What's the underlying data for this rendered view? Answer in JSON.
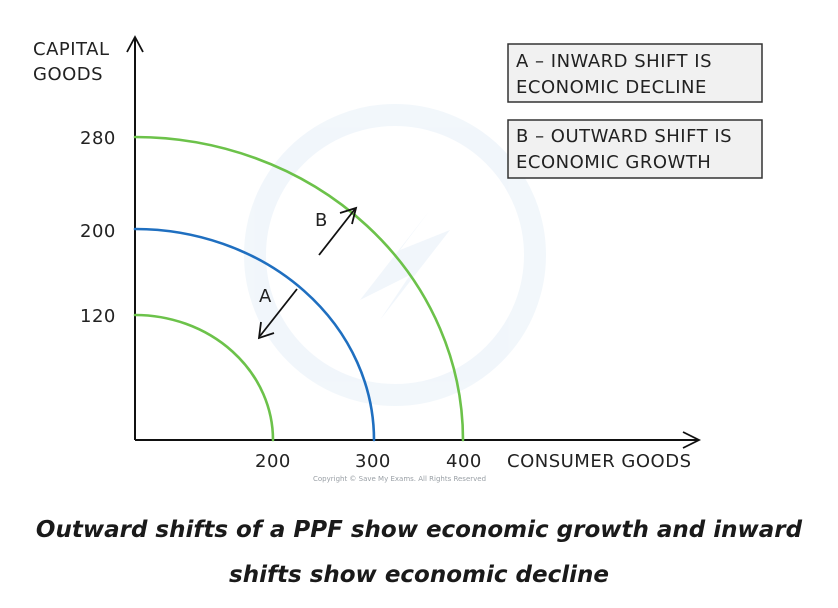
{
  "chart_data": {
    "type": "line",
    "y_axis_label": [
      "CAPITAL",
      "GOODS"
    ],
    "x_axis_label": "CONSUMER GOODS",
    "y_ticks": [
      "280",
      "200",
      "120"
    ],
    "x_ticks": [
      "200",
      "300",
      "400"
    ],
    "series": [
      {
        "x_intercept": 200,
        "y_intercept": 120,
        "color": "#6cc24a"
      },
      {
        "x_intercept": 300,
        "y_intercept": 200,
        "color": "#1f6fc0"
      },
      {
        "x_intercept": 400,
        "y_intercept": 280,
        "color": "#6cc24a"
      }
    ],
    "arrows": [
      {
        "label": "A",
        "direction": "inward"
      },
      {
        "label": "B",
        "direction": "outward"
      }
    ]
  },
  "legend_boxes": [
    {
      "line1": "A – INWARD SHIFT IS",
      "line2": "ECONOMIC DECLINE"
    },
    {
      "line1": "B – OUTWARD SHIFT IS",
      "line2": "ECONOMIC GROWTH"
    }
  ],
  "copyright": "Copyright © Save My Exams. All Rights Reserved",
  "caption": {
    "line1": "Outward shifts of a PPF show economic growth and inward",
    "line2": "shifts show economic decline"
  }
}
